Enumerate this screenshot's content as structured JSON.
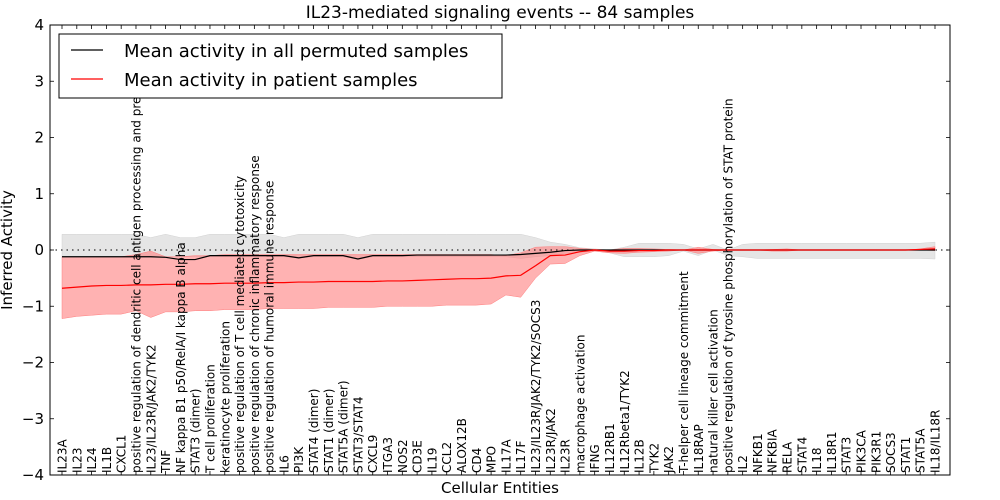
{
  "chart_data": {
    "type": "line",
    "title": "IL23-mediated signaling events -- 84 samples",
    "xlabel": "Cellular Entities",
    "ylabel": "Inferred Activity",
    "ylim": [
      -4,
      4
    ],
    "yticks": [
      "4",
      "3",
      "2",
      "1",
      "0",
      "−1",
      "−2",
      "−3",
      "−4"
    ],
    "ytick_values": [
      4,
      3,
      2,
      1,
      0,
      -1,
      -2,
      -3,
      -4
    ],
    "grid": false,
    "zero_reference_line": "dotted",
    "legend": {
      "placement": "top-left",
      "entries": [
        {
          "label": "Mean activity in all permuted samples",
          "color": "#000000"
        },
        {
          "label": "Mean activity in patient samples",
          "color": "#ff0000"
        }
      ]
    },
    "colors": {
      "permuted_line": "#000000",
      "patient_line": "#ff0000",
      "permuted_band": "#d3d3d3",
      "patient_band": "#ff7f7f"
    },
    "categories": [
      "IL23A",
      "IL23",
      "IL24",
      "IL1B",
      "CXCL1",
      "positive regulation of dendritic cell antigen processing and presentation",
      "IL23/IL23R/JAK2/TYK2",
      "TNF",
      "NF kappa B1 p50/RelA/I kappa B alpha",
      "STAT3 (dimer)",
      "T cell proliferation",
      "keratinocyte proliferation",
      "positive regulation of T cell mediated cytotoxicity",
      "positive regulation of chronic inflammatory response",
      "positive regulation of humoral immune response",
      "IL6",
      "PI3K",
      "STAT4 (dimer)",
      "STAT1 (dimer)",
      "STAT5A (dimer)",
      "STAT3/STAT4",
      "CXCL9",
      "ITGA3",
      "NOS2",
      "CD3E",
      "IL19",
      "CCL2",
      "ALOX12B",
      "CD4",
      "MPO",
      "IL17A",
      "IL17F",
      "IL23/IL23R/JAK2/TYK2/SOCS3",
      "IL23R/JAK2",
      "IL23R",
      "macrophage activation",
      "IFNG",
      "IL12RB1",
      "IL12Rbeta1/TYK2",
      "IL12B",
      "TYK2",
      "JAK2",
      "T-helper cell lineage commitment",
      "IL18RAP",
      "natural killer cell activation",
      "positive regulation of tyrosine phosphorylation of STAT protein",
      "IL2",
      "NFKB1",
      "NFKBIA",
      "RELA",
      "STAT4",
      "IL18",
      "IL18R1",
      "STAT3",
      "PIK3CA",
      "PIK3R1",
      "SOCS3",
      "STAT1",
      "STAT5A",
      "IL18/IL18R"
    ],
    "series": [
      {
        "name": "Mean activity in patient samples",
        "values": [
          -0.68,
          -0.66,
          -0.64,
          -0.63,
          -0.63,
          -0.62,
          -0.62,
          -0.61,
          -0.61,
          -0.6,
          -0.6,
          -0.59,
          -0.59,
          -0.59,
          -0.58,
          -0.58,
          -0.57,
          -0.57,
          -0.56,
          -0.56,
          -0.56,
          -0.56,
          -0.55,
          -0.55,
          -0.54,
          -0.53,
          -0.52,
          -0.51,
          -0.51,
          -0.5,
          -0.46,
          -0.45,
          -0.28,
          -0.1,
          -0.09,
          -0.03,
          0.0,
          -0.02,
          -0.02,
          -0.01,
          -0.01,
          0.0,
          0.0,
          0.0,
          0.0,
          0.0,
          0.0,
          0.0,
          0.0,
          0.0,
          0.0,
          0.0,
          0.0,
          0.0,
          0.0,
          0.0,
          0.0,
          0.0,
          0.01,
          0.02
        ],
        "band_upper": [
          -0.12,
          -0.12,
          -0.12,
          -0.12,
          -0.12,
          -0.08,
          -0.02,
          -0.12,
          -0.12,
          -0.1,
          -0.1,
          -0.08,
          -0.08,
          -0.08,
          -0.08,
          -0.08,
          -0.08,
          -0.08,
          -0.08,
          -0.08,
          -0.08,
          -0.08,
          -0.08,
          -0.08,
          -0.08,
          -0.08,
          -0.08,
          -0.08,
          -0.08,
          -0.08,
          -0.1,
          -0.05,
          0.05,
          0.06,
          0.06,
          0.03,
          0.01,
          0.0,
          0.03,
          0.03,
          0.02,
          0.01,
          0.0,
          0.05,
          0.01,
          0.0,
          0.0,
          0.0,
          0.01,
          0.02,
          0.0,
          0.0,
          0.0,
          0.0,
          0.0,
          0.0,
          0.0,
          0.0,
          0.02,
          0.06
        ],
        "band_lower": [
          -1.22,
          -1.18,
          -1.16,
          -1.14,
          -1.14,
          -1.08,
          -1.2,
          -1.1,
          -1.1,
          -1.08,
          -1.08,
          -1.06,
          -1.06,
          -1.06,
          -1.04,
          -1.04,
          -1.04,
          -1.04,
          -1.02,
          -1.02,
          -1.02,
          -1.02,
          -1.0,
          -1.0,
          -1.0,
          -1.0,
          -0.98,
          -0.98,
          -0.98,
          -0.96,
          -0.8,
          -0.84,
          -0.5,
          -0.25,
          -0.24,
          -0.1,
          -0.02,
          -0.05,
          -0.06,
          -0.04,
          -0.03,
          -0.02,
          0.0,
          -0.06,
          -0.02,
          0.0,
          0.0,
          0.0,
          -0.02,
          -0.02,
          0.0,
          0.0,
          0.0,
          0.0,
          0.0,
          0.0,
          0.0,
          0.0,
          0.0,
          -0.01
        ]
      },
      {
        "name": "Mean activity in all permuted samples",
        "values": [
          -0.12,
          -0.12,
          -0.12,
          -0.12,
          -0.12,
          -0.12,
          -0.12,
          -0.13,
          -0.17,
          -0.17,
          -0.1,
          -0.1,
          -0.1,
          -0.1,
          -0.1,
          -0.1,
          -0.14,
          -0.1,
          -0.1,
          -0.1,
          -0.16,
          -0.1,
          -0.1,
          -0.1,
          -0.09,
          -0.09,
          -0.09,
          -0.09,
          -0.09,
          -0.09,
          -0.09,
          -0.08,
          -0.06,
          -0.04,
          -0.01,
          0.0,
          0.0,
          0.0,
          0.0,
          0.0,
          0.0,
          0.0,
          0.0,
          0.0,
          0.0,
          0.0,
          0.0,
          0.0,
          0.0,
          0.0,
          0.0,
          0.0,
          0.0,
          0.0,
          0.0,
          0.0,
          0.0,
          0.0,
          0.0,
          0.0
        ],
        "band_upper": [
          0.28,
          0.28,
          0.28,
          0.28,
          0.28,
          0.28,
          0.22,
          0.28,
          0.22,
          0.22,
          0.28,
          0.28,
          0.28,
          0.28,
          0.28,
          0.22,
          0.28,
          0.28,
          0.28,
          0.28,
          0.22,
          0.28,
          0.28,
          0.28,
          0.28,
          0.28,
          0.28,
          0.28,
          0.28,
          0.28,
          0.28,
          0.28,
          0.22,
          0.14,
          0.1,
          0.04,
          0.02,
          0.0,
          0.05,
          0.12,
          0.12,
          0.12,
          0.1,
          0.02,
          0.1,
          0.0,
          0.1,
          0.12,
          0.12,
          0.12,
          0.12,
          0.12,
          0.12,
          0.12,
          0.12,
          0.12,
          0.12,
          0.12,
          0.12,
          0.14
        ],
        "band_lower": [
          -0.12,
          -0.12,
          -0.12,
          -0.12,
          -0.12,
          -0.12,
          -0.12,
          -0.12,
          -0.12,
          -0.12,
          -0.12,
          -0.12,
          -0.12,
          -0.12,
          -0.12,
          -0.12,
          -0.14,
          -0.12,
          -0.12,
          -0.12,
          -0.16,
          -0.12,
          -0.12,
          -0.12,
          -0.12,
          -0.12,
          -0.12,
          -0.12,
          -0.12,
          -0.12,
          -0.12,
          -0.15,
          -0.12,
          -0.1,
          -0.06,
          -0.04,
          -0.02,
          -0.05,
          -0.12,
          -0.12,
          -0.12,
          -0.1,
          -0.02,
          -0.1,
          0.0,
          -0.1,
          -0.12,
          -0.15,
          -0.15,
          -0.15,
          -0.15,
          -0.15,
          -0.15,
          -0.15,
          -0.15,
          -0.15,
          -0.15,
          -0.15,
          -0.15,
          -0.16
        ]
      }
    ]
  }
}
